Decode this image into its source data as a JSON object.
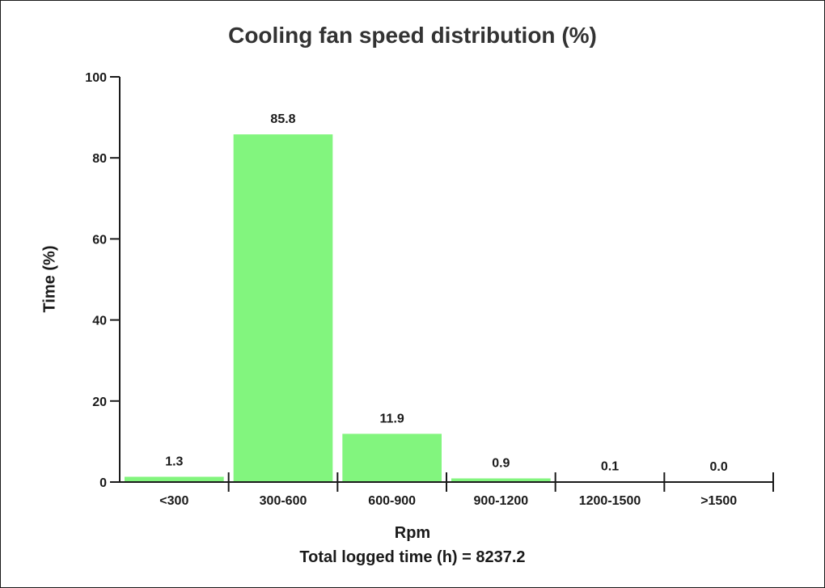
{
  "chart_data": {
    "type": "bar",
    "title": "Cooling fan speed distribution (%)",
    "xlabel": "Rpm",
    "subtitle": "Total logged time (h) = 8237.2",
    "ylabel": "Time (%)",
    "ylim": [
      0,
      100
    ],
    "yticks": [
      0,
      20,
      40,
      60,
      80,
      100
    ],
    "categories": [
      "<300",
      "300-600",
      "600-900",
      "900-1200",
      "1200-1500",
      ">1500"
    ],
    "values": [
      1.3,
      85.8,
      11.9,
      0.9,
      0.1,
      0.0
    ],
    "value_labels": [
      "1.3",
      "85.8",
      "11.9",
      "0.9",
      "0.1",
      "0.0"
    ],
    "grid": false,
    "bar_color": "#82f57e"
  }
}
